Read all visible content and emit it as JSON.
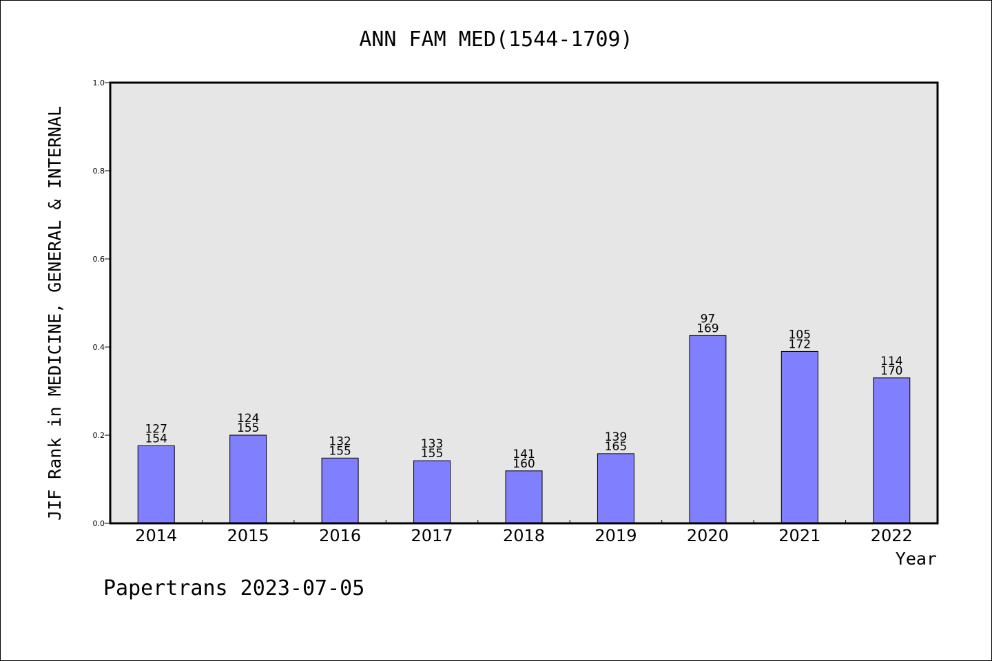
{
  "chart_data": {
    "type": "bar",
    "title": "ANN FAM MED(1544-1709)",
    "xlabel": "Year",
    "ylabel": "JIF Rank in MEDICINE, GENERAL & INTERNAL",
    "ylim": [
      0,
      1.0
    ],
    "yticks": [
      "0.0",
      "0.2",
      "0.4",
      "0.6",
      "0.8",
      "1.0"
    ],
    "categories": [
      "2014",
      "2015",
      "2016",
      "2017",
      "2018",
      "2019",
      "2020",
      "2021",
      "2022"
    ],
    "values": [
      0.176,
      0.2,
      0.148,
      0.142,
      0.119,
      0.158,
      0.426,
      0.39,
      0.33
    ],
    "rank_labels": [
      "127",
      "124",
      "132",
      "133",
      "141",
      "139",
      "97",
      "105",
      "114"
    ],
    "total_labels": [
      "154",
      "155",
      "155",
      "155",
      "160",
      "165",
      "169",
      "172",
      "170"
    ],
    "grid": false,
    "bar_color": "#8080ff",
    "plot_bg": "#e6e6e6"
  },
  "footer": "Papertrans 2023-07-05"
}
